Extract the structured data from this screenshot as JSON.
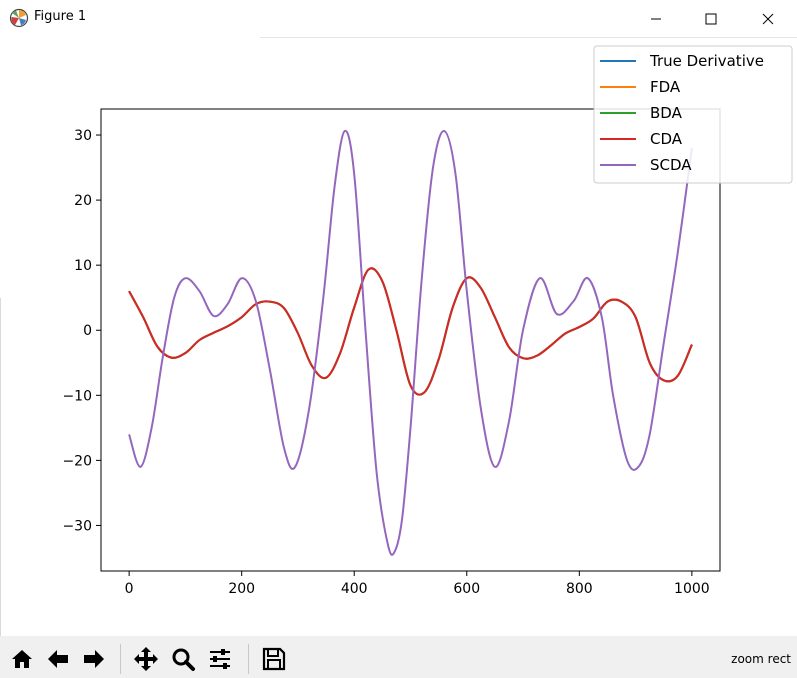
{
  "window": {
    "title": "Figure 1"
  },
  "titlebar": {
    "minimize_icon": "minimize-icon",
    "maximize_icon": "maximize-icon",
    "close_icon": "close-icon"
  },
  "toolbar": {
    "buttons": [
      {
        "name": "home-button",
        "icon": "home-icon"
      },
      {
        "name": "back-button",
        "icon": "arrow-left-icon"
      },
      {
        "name": "forward-button",
        "icon": "arrow-right-icon"
      },
      {
        "name": "pan-button",
        "icon": "move-icon"
      },
      {
        "name": "zoom-button",
        "icon": "magnifier-icon"
      },
      {
        "name": "configure-subplots-button",
        "icon": "sliders-icon"
      },
      {
        "name": "save-button",
        "icon": "floppy-icon"
      }
    ],
    "status": "zoom rect"
  },
  "chart_data": {
    "type": "line",
    "title": "",
    "xlabel": "",
    "ylabel": "",
    "xlim": [
      -50,
      1050
    ],
    "ylim": [
      -37,
      34
    ],
    "xticks": [
      0,
      200,
      400,
      600,
      800,
      1000
    ],
    "yticks": [
      30,
      20,
      10,
      0,
      -10,
      -20,
      -30
    ],
    "xtick_labels": [
      "0",
      "200",
      "400",
      "600",
      "800",
      "1000"
    ],
    "ytick_labels": [
      "30",
      "20",
      "10",
      "0",
      "−10",
      "−20",
      "−30"
    ],
    "grid": false,
    "legend_position": "top-right",
    "series": [
      {
        "name": "True Derivative",
        "color": "#1f77b4",
        "x": [
          0,
          25,
          50,
          75,
          100,
          125,
          150,
          175,
          200,
          225,
          250,
          275,
          300,
          325,
          350,
          375,
          400,
          425,
          450,
          475,
          500,
          525,
          550,
          575,
          600,
          625,
          650,
          675,
          700,
          725,
          750,
          775,
          800,
          825,
          850,
          875,
          900,
          925,
          950,
          975,
          1000
        ],
        "y": [
          6,
          2,
          -2.5,
          -4.2,
          -3.5,
          -1.5,
          -0.4,
          0.6,
          2,
          4,
          4.4,
          3.4,
          -0.5,
          -5.5,
          -7.3,
          -3.5,
          3.5,
          9.3,
          7.5,
          0,
          -8.5,
          -9.5,
          -4.5,
          3.5,
          8,
          6.5,
          2,
          -2.6,
          -4.3,
          -3.9,
          -2.3,
          -0.5,
          0.5,
          1.8,
          4.4,
          4.4,
          2,
          -5,
          -7.7,
          -7,
          -2.2
        ]
      },
      {
        "name": "FDA",
        "color": "#ff7f0e",
        "x": [
          0,
          25,
          50,
          75,
          100,
          125,
          150,
          175,
          200,
          225,
          250,
          275,
          300,
          325,
          350,
          375,
          400,
          425,
          450,
          475,
          500,
          525,
          550,
          575,
          600,
          625,
          650,
          675,
          700,
          725,
          750,
          775,
          800,
          825,
          850,
          875,
          900,
          925,
          950,
          975,
          1000
        ],
        "y": [
          6,
          2,
          -2.5,
          -4.2,
          -3.5,
          -1.5,
          -0.4,
          0.6,
          2,
          4,
          4.4,
          3.4,
          -0.5,
          -5.5,
          -7.3,
          -3.5,
          3.5,
          9.3,
          7.5,
          0,
          -8.5,
          -9.5,
          -4.5,
          3.5,
          8,
          6.5,
          2,
          -2.6,
          -4.3,
          -3.9,
          -2.3,
          -0.5,
          0.5,
          1.8,
          4.4,
          4.4,
          2,
          -5,
          -7.7,
          -7,
          -2.2
        ]
      },
      {
        "name": "BDA",
        "color": "#2ca02c",
        "x": [
          0,
          25,
          50,
          75,
          100,
          125,
          150,
          175,
          200,
          225,
          250,
          275,
          300,
          325,
          350,
          375,
          400,
          425,
          450,
          475,
          500,
          525,
          550,
          575,
          600,
          625,
          650,
          675,
          700,
          725,
          750,
          775,
          800,
          825,
          850,
          875,
          900,
          925,
          950,
          975,
          1000
        ],
        "y": [
          6,
          2,
          -2.5,
          -4.2,
          -3.5,
          -1.5,
          -0.4,
          0.6,
          2,
          4,
          4.4,
          3.4,
          -0.5,
          -5.5,
          -7.3,
          -3.5,
          3.5,
          9.3,
          7.5,
          0,
          -8.5,
          -9.5,
          -4.5,
          3.5,
          8,
          6.5,
          2,
          -2.6,
          -4.3,
          -3.9,
          -2.3,
          -0.5,
          0.5,
          1.8,
          4.4,
          4.4,
          2,
          -5,
          -7.7,
          -7,
          -2.2
        ]
      },
      {
        "name": "CDA",
        "color": "#d62728",
        "x": [
          0,
          25,
          50,
          75,
          100,
          125,
          150,
          175,
          200,
          225,
          250,
          275,
          300,
          325,
          350,
          375,
          400,
          425,
          450,
          475,
          500,
          525,
          550,
          575,
          600,
          625,
          650,
          675,
          700,
          725,
          750,
          775,
          800,
          825,
          850,
          875,
          900,
          925,
          950,
          975,
          1000
        ],
        "y": [
          6,
          2,
          -2.5,
          -4.2,
          -3.5,
          -1.5,
          -0.4,
          0.6,
          2,
          4,
          4.4,
          3.4,
          -0.5,
          -5.5,
          -7.3,
          -3.5,
          3.5,
          9.3,
          7.5,
          0,
          -8.5,
          -9.5,
          -4.5,
          3.5,
          8,
          6.5,
          2,
          -2.6,
          -4.3,
          -3.9,
          -2.3,
          -0.5,
          0.5,
          1.8,
          4.4,
          4.4,
          2,
          -5,
          -7.7,
          -7,
          -2.2
        ]
      },
      {
        "name": "SCDA",
        "color": "#9467bd",
        "x": [
          0,
          20,
          40,
          60,
          80,
          100,
          125,
          150,
          175,
          200,
          225,
          250,
          275,
          295,
          320,
          345,
          365,
          383,
          400,
          420,
          440,
          460,
          472,
          485,
          500,
          520,
          540,
          560,
          580,
          600,
          625,
          650,
          675,
          700,
          730,
          760,
          790,
          815,
          840,
          860,
          885,
          905,
          925,
          950,
          975,
          1000
        ],
        "y": [
          -16,
          -21,
          -15,
          -4,
          5,
          8,
          6,
          2.2,
          4,
          8,
          4.5,
          -6,
          -18,
          -21,
          -12,
          5,
          22,
          30.6,
          24,
          0,
          -22,
          -33,
          -34,
          -29,
          -15,
          8,
          25,
          30.6,
          24,
          6,
          -12,
          -21,
          -14,
          0,
          8,
          2.5,
          4.5,
          8,
          2,
          -10,
          -20,
          -21,
          -16,
          -2,
          12,
          28
        ]
      }
    ]
  }
}
